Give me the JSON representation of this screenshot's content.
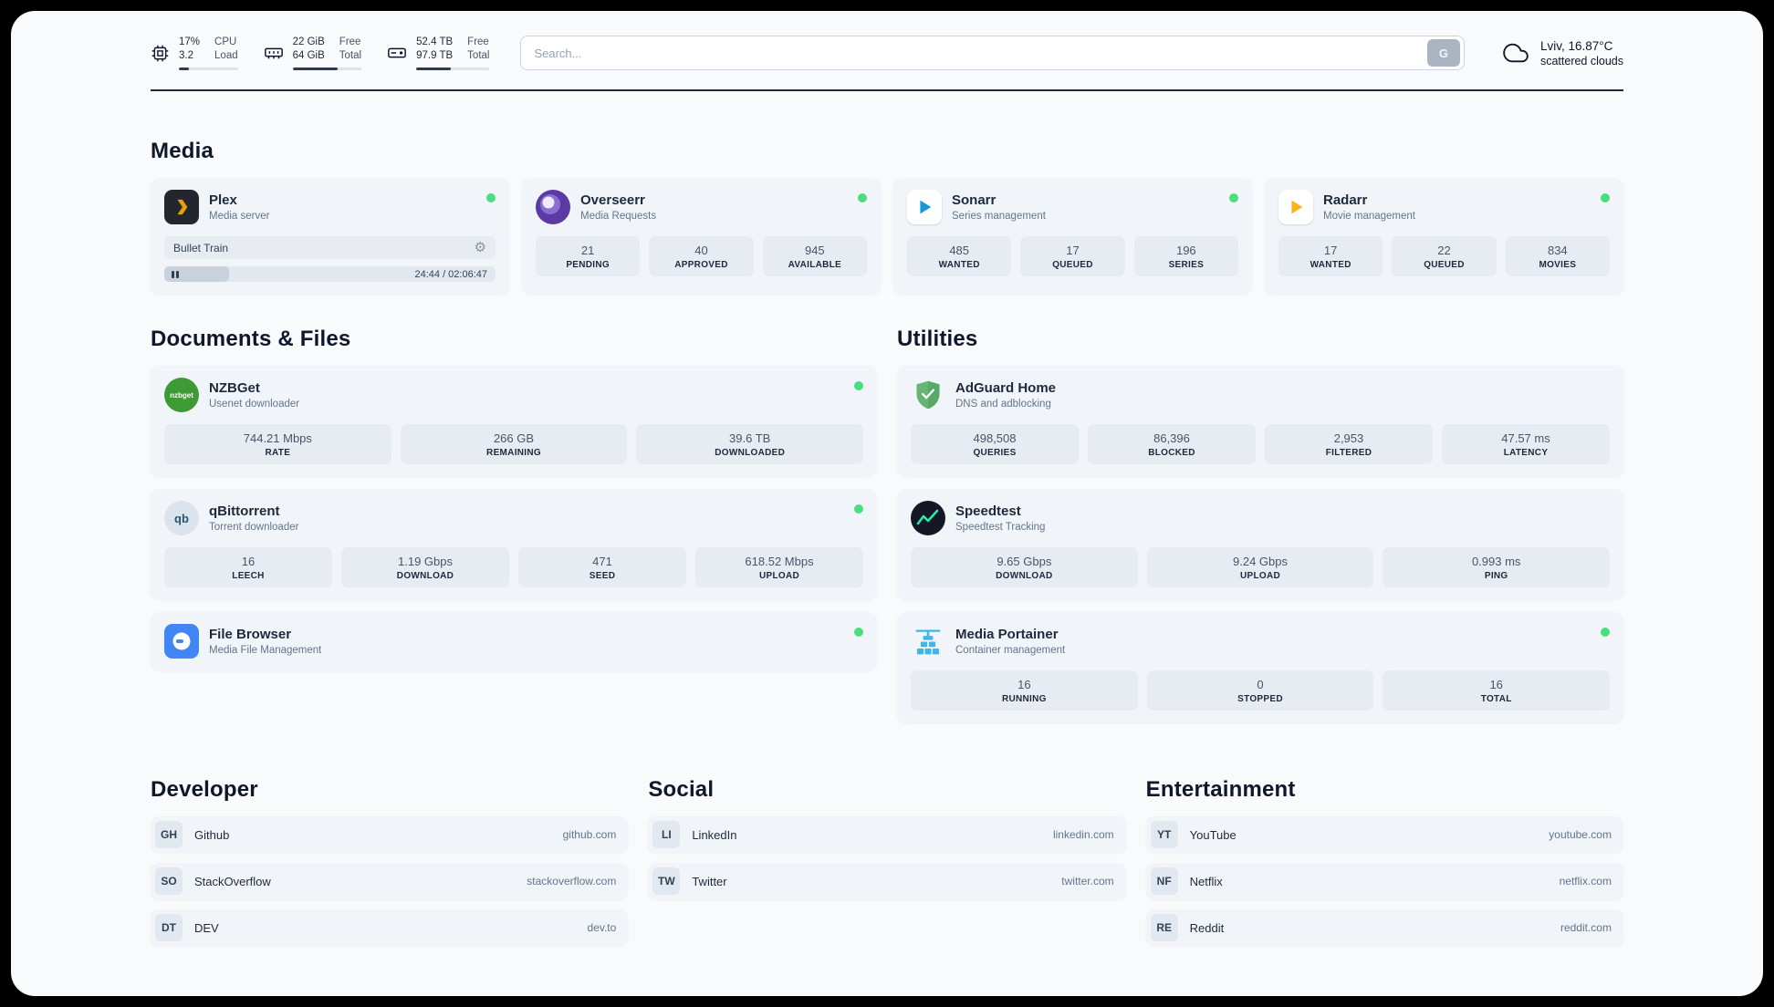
{
  "header": {
    "cpu": {
      "value_top": "17%",
      "value_bottom": "3.2",
      "label_top": "CPU",
      "label_bottom": "Load",
      "progress": 17
    },
    "ram": {
      "value_top": "22 GiB",
      "value_bottom": "64 GiB",
      "label_top": "Free",
      "label_bottom": "Total",
      "progress": 66
    },
    "disk": {
      "value_top": "52.4 TB",
      "value_bottom": "97.9 TB",
      "label_top": "Free",
      "label_bottom": "Total",
      "progress": 47
    },
    "search": {
      "placeholder": "Search...",
      "button_label": "G"
    },
    "weather": {
      "location": "Lviv, 16.87°C",
      "condition": "scattered clouds"
    }
  },
  "colors": {
    "status_online": "#4ade80",
    "accent_plex": "#e5a00d",
    "accent_sonarr": "#1798d6",
    "accent_radarr": "#ffb020",
    "accent_adguard": "#66b574",
    "accent_speedtest": "#2ee6a8",
    "accent_portainer": "#3fb6e8"
  },
  "sections": {
    "media": {
      "title": "Media",
      "plex": {
        "name": "Plex",
        "subtitle": "Media server",
        "now_playing": "Bullet Train",
        "time": "24:44 / 02:06:47",
        "progress": 19.5
      },
      "overseerr": {
        "name": "Overseerr",
        "subtitle": "Media Requests",
        "stats": [
          {
            "value": "21",
            "label": "PENDING"
          },
          {
            "value": "40",
            "label": "APPROVED"
          },
          {
            "value": "945",
            "label": "AVAILABLE"
          }
        ]
      },
      "sonarr": {
        "name": "Sonarr",
        "subtitle": "Series management",
        "stats": [
          {
            "value": "485",
            "label": "WANTED"
          },
          {
            "value": "17",
            "label": "QUEUED"
          },
          {
            "value": "196",
            "label": "SERIES"
          }
        ]
      },
      "radarr": {
        "name": "Radarr",
        "subtitle": "Movie management",
        "stats": [
          {
            "value": "17",
            "label": "WANTED"
          },
          {
            "value": "22",
            "label": "QUEUED"
          },
          {
            "value": "834",
            "label": "MOVIES"
          }
        ]
      }
    },
    "documents": {
      "title": "Documents & Files",
      "nzbget": {
        "name": "NZBGet",
        "subtitle": "Usenet downloader",
        "stats": [
          {
            "value": "744.21 Mbps",
            "label": "RATE"
          },
          {
            "value": "266 GB",
            "label": "REMAINING"
          },
          {
            "value": "39.6 TB",
            "label": "DOWNLOADED"
          }
        ]
      },
      "qbittorrent": {
        "name": "qBittorrent",
        "subtitle": "Torrent downloader",
        "stats": [
          {
            "value": "16",
            "label": "LEECH"
          },
          {
            "value": "1.19 Gbps",
            "label": "DOWNLOAD"
          },
          {
            "value": "471",
            "label": "SEED"
          },
          {
            "value": "618.52 Mbps",
            "label": "UPLOAD"
          }
        ]
      },
      "filebrowser": {
        "name": "File Browser",
        "subtitle": "Media File Management"
      }
    },
    "utilities": {
      "title": "Utilities",
      "adguard": {
        "name": "AdGuard Home",
        "subtitle": "DNS and adblocking",
        "stats": [
          {
            "value": "498,508",
            "label": "QUERIES"
          },
          {
            "value": "86,396",
            "label": "BLOCKED"
          },
          {
            "value": "2,953",
            "label": "FILTERED"
          },
          {
            "value": "47.57 ms",
            "label": "LATENCY"
          }
        ]
      },
      "speedtest": {
        "name": "Speedtest",
        "subtitle": "Speedtest Tracking",
        "stats": [
          {
            "value": "9.65 Gbps",
            "label": "DOWNLOAD"
          },
          {
            "value": "9.24 Gbps",
            "label": "UPLOAD"
          },
          {
            "value": "0.993 ms",
            "label": "PING"
          }
        ]
      },
      "portainer": {
        "name": "Media Portainer",
        "subtitle": "Container management",
        "stats": [
          {
            "value": "16",
            "label": "RUNNING"
          },
          {
            "value": "0",
            "label": "STOPPED"
          },
          {
            "value": "16",
            "label": "TOTAL"
          }
        ]
      }
    },
    "developer": {
      "title": "Developer",
      "links": [
        {
          "abbr": "GH",
          "name": "Github",
          "url": "github.com"
        },
        {
          "abbr": "SO",
          "name": "StackOverflow",
          "url": "stackoverflow.com"
        },
        {
          "abbr": "DT",
          "name": "DEV",
          "url": "dev.to"
        }
      ]
    },
    "social": {
      "title": "Social",
      "links": [
        {
          "abbr": "LI",
          "name": "LinkedIn",
          "url": "linkedin.com"
        },
        {
          "abbr": "TW",
          "name": "Twitter",
          "url": "twitter.com"
        }
      ]
    },
    "entertainment": {
      "title": "Entertainment",
      "links": [
        {
          "abbr": "YT",
          "name": "YouTube",
          "url": "youtube.com"
        },
        {
          "abbr": "NF",
          "name": "Netflix",
          "url": "netflix.com"
        },
        {
          "abbr": "RE",
          "name": "Reddit",
          "url": "reddit.com"
        }
      ]
    }
  }
}
